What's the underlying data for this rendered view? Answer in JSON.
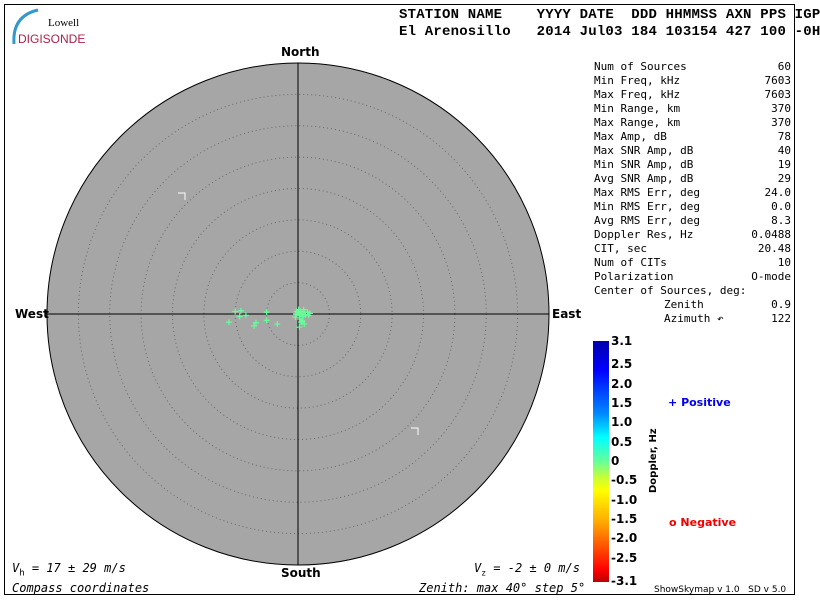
{
  "logo": {
    "top": "Lowell",
    "bottom": "DIGISONDE"
  },
  "header": {
    "row1": "STATION NAME    YYYY DATE  DDD HHMMSS AXN PPS IGP",
    "row2": "El Arenosillo   2014 Jul03 184 103154 427 100 -0H"
  },
  "stats": [
    {
      "label": "Num of Sources",
      "value": "60"
    },
    {
      "label": "Min Freq, kHz",
      "value": "7603"
    },
    {
      "label": "Max Freq, kHz",
      "value": "7603"
    },
    {
      "label": "Min Range, km",
      "value": "370"
    },
    {
      "label": "Max Range, km",
      "value": "370"
    },
    {
      "label": "Max Amp, dB",
      "value": "78"
    },
    {
      "label": "Max SNR Amp, dB",
      "value": "40"
    },
    {
      "label": "Min SNR Amp, dB",
      "value": "19"
    },
    {
      "label": "Avg SNR Amp, dB",
      "value": "29"
    },
    {
      "label": "Max RMS Err, deg",
      "value": "24.0"
    },
    {
      "label": "Min RMS Err, deg",
      "value": "0.0"
    },
    {
      "label": "Avg RMS Err, deg",
      "value": "8.3"
    },
    {
      "label": "Doppler Res, Hz",
      "value": "0.0488"
    },
    {
      "label": "CIT, sec",
      "value": "20.48"
    },
    {
      "label": "Num of CITs",
      "value": "10"
    },
    {
      "label": "Polarization",
      "value": "O-mode"
    }
  ],
  "center": {
    "title": "Center of Sources, deg:",
    "zenith_label": "Zenith",
    "zenith": "0.9",
    "azimuth_label": "Azimuth",
    "azimuth": "122"
  },
  "compass": {
    "north": "North",
    "south": "South",
    "east": "East",
    "west": "West"
  },
  "footer": {
    "vh_sym": "V",
    "vh_sub": "h",
    "vh": " = 17 ± 29 m/s",
    "vz_sym": "V",
    "vz_sub": "z",
    "vz": " = -2 ± 0 m/s",
    "coords": "Compass coordinates",
    "zenith": "Zenith: max 40°  step 5°",
    "version": "ShowSkymap v 1.0   SD v 5.0"
  },
  "colorbar": {
    "label": "Doppler, Hz",
    "ticks": [
      "3.1",
      "2.5",
      "2.0",
      "1.5",
      "1.0",
      "0.5",
      "0",
      "-0.5",
      "-1.0",
      "-1.5",
      "-2.0",
      "-2.5",
      "-3.1"
    ]
  },
  "legend": {
    "positive": "Positive",
    "negative": "Negative",
    "positive_color": "#0000ee",
    "negative_color": "#ee0000"
  },
  "chart_data": {
    "type": "scatter",
    "coordinate_system": "polar sky map, zenith angle 0–40° step 5°",
    "zenith_max": 40,
    "zenith_step": 5,
    "marker_color": "#66ff99",
    "marker": "+ (positive Doppler)",
    "points_east_north_deg": [
      [
        -11.0,
        -1.3
      ],
      [
        -10.0,
        0.4
      ],
      [
        -9.1,
        0.5
      ],
      [
        -8.3,
        -0.2
      ],
      [
        -9.3,
        -0.4
      ],
      [
        -7.0,
        -1.9
      ],
      [
        -6.7,
        -1.4
      ],
      [
        -5.0,
        0.3
      ],
      [
        -5.0,
        -1.0
      ],
      [
        -3.3,
        -1.6
      ],
      [
        -0.3,
        0.0
      ],
      [
        0.0,
        0.3
      ],
      [
        0.2,
        -0.2
      ],
      [
        0.4,
        0.4
      ],
      [
        0.6,
        0.0
      ],
      [
        0.8,
        -0.4
      ],
      [
        1.0,
        0.3
      ],
      [
        1.2,
        -0.1
      ],
      [
        0.3,
        -0.8
      ],
      [
        0.7,
        -1.1
      ],
      [
        1.5,
        0.3
      ],
      [
        1.7,
        -0.2
      ],
      [
        -0.4,
        -0.5
      ],
      [
        0.1,
        0.7
      ],
      [
        0.5,
        -1.3
      ],
      [
        1.0,
        -1.6
      ],
      [
        0.2,
        -2.1
      ],
      [
        1.9,
        0.1
      ],
      [
        0.9,
        0.7
      ],
      [
        -0.2,
        0.4
      ]
    ]
  }
}
